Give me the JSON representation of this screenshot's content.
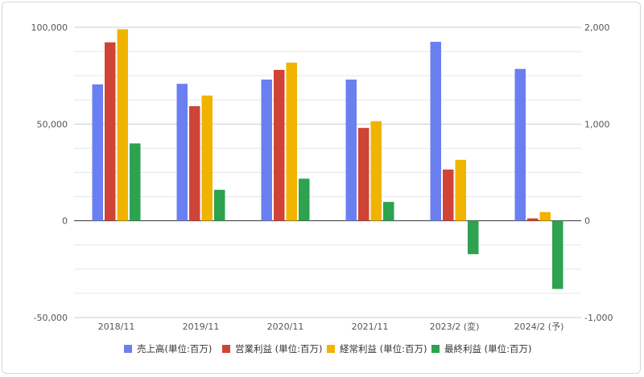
{
  "chart_data": {
    "type": "bar",
    "categories": [
      "2018/11",
      "2019/11",
      "2020/11",
      "2021/11",
      "2023/2 (変)",
      "2024/2 (予)"
    ],
    "series": [
      {
        "name": "売上高(単位:百万)",
        "axis": "left",
        "color": "#6a7ff0",
        "values": [
          70500,
          70800,
          73000,
          73000,
          92500,
          78500
        ]
      },
      {
        "name": "営業利益 (単位:百万)",
        "axis": "right",
        "color": "#d04437",
        "values": [
          1845,
          1185,
          1560,
          960,
          530,
          25
        ]
      },
      {
        "name": "経常利益 (単位:百万)",
        "axis": "right",
        "color": "#f0b400",
        "values": [
          1980,
          1295,
          1635,
          1030,
          630,
          90
        ]
      },
      {
        "name": "最終利益 (単位:百万)",
        "axis": "right",
        "color": "#2da24f",
        "values": [
          800,
          320,
          435,
          195,
          -345,
          -705
        ]
      }
    ],
    "left_axis": {
      "range": [
        -50000,
        100000
      ],
      "ticks": [
        "100,000",
        "50,000",
        "0",
        "-50,000"
      ],
      "tick_values": [
        100000,
        50000,
        0,
        -50000
      ]
    },
    "right_axis": {
      "range": [
        -1000,
        2000
      ],
      "ticks": [
        "2,000",
        "1,000",
        "0",
        "-1,000"
      ],
      "tick_values": [
        2000,
        1000,
        0,
        -1000
      ]
    },
    "grid": true,
    "legend_position": "bottom"
  }
}
